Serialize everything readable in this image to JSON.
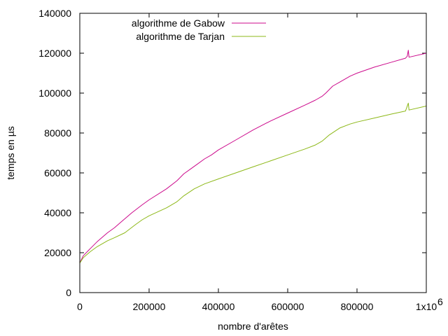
{
  "chart_data": {
    "type": "line",
    "xlabel": "nombre d'arêtes",
    "ylabel": "temps en µs",
    "xlim": [
      0,
      1000000
    ],
    "ylim": [
      0,
      140000
    ],
    "x_ticks": [
      0,
      200000,
      400000,
      600000,
      800000,
      1000000
    ],
    "x_tick_labels": [
      "0",
      "200000",
      "400000",
      "600000",
      "800000",
      "1x10"
    ],
    "x_exponent_label": "6",
    "y_ticks": [
      0,
      20000,
      40000,
      60000,
      80000,
      100000,
      120000,
      140000
    ],
    "y_tick_labels": [
      "0",
      "20000",
      "40000",
      "60000",
      "80000",
      "100000",
      "120000",
      "140000"
    ],
    "grid": false,
    "legend_position": "top-left",
    "series": [
      {
        "name": "algorithme de Gabow",
        "color": "#cc0a8c",
        "x": [
          0,
          10000,
          30000,
          50000,
          80000,
          100000,
          120000,
          150000,
          180000,
          200000,
          250000,
          280000,
          300000,
          320000,
          340000,
          360000,
          380000,
          400000,
          450000,
          500000,
          550000,
          600000,
          650000,
          680000,
          700000,
          710000,
          730000,
          750000,
          780000,
          800000,
          850000,
          900000,
          940000,
          945000,
          948000,
          950000,
          1000000
        ],
        "y": [
          15000,
          18500,
          22000,
          25500,
          30000,
          32500,
          35500,
          40000,
          44000,
          46500,
          52000,
          56000,
          59500,
          62000,
          64500,
          67000,
          69000,
          71500,
          76500,
          81500,
          86000,
          90000,
          94000,
          96500,
          98500,
          100000,
          103500,
          105500,
          108500,
          110000,
          113000,
          115500,
          117500,
          118500,
          121500,
          118000,
          120000
        ]
      },
      {
        "name": "algorithme de Tarjan",
        "color": "#8db818",
        "x": [
          0,
          10000,
          30000,
          50000,
          80000,
          100000,
          130000,
          160000,
          180000,
          200000,
          250000,
          280000,
          300000,
          330000,
          360000,
          400000,
          450000,
          500000,
          550000,
          600000,
          650000,
          680000,
          700000,
          720000,
          750000,
          780000,
          800000,
          850000,
          900000,
          940000,
          948000,
          950000,
          1000000
        ],
        "y": [
          14800,
          17500,
          20500,
          23000,
          26000,
          27500,
          30000,
          34000,
          36500,
          38500,
          42500,
          45500,
          48500,
          52000,
          54500,
          57000,
          60000,
          63000,
          66000,
          69000,
          72000,
          74000,
          76000,
          79000,
          82500,
          84500,
          85500,
          87500,
          89500,
          91000,
          95000,
          91500,
          93500
        ]
      }
    ]
  }
}
